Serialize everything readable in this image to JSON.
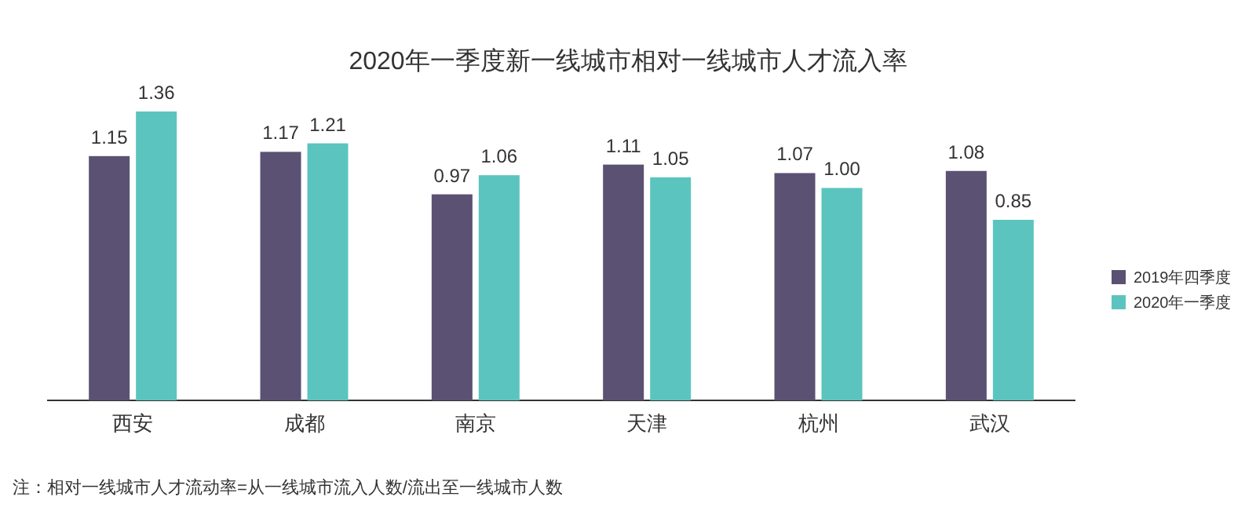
{
  "chart_data": {
    "type": "bar",
    "title": "2020年一季度新一线城市相对一线城市人才流入率",
    "categories": [
      "西安",
      "成都",
      "南京",
      "天津",
      "杭州",
      "武汉"
    ],
    "series": [
      {
        "name": "2019年四季度",
        "color": "#5b5173",
        "values": [
          1.15,
          1.17,
          0.97,
          1.11,
          1.07,
          1.08
        ],
        "value_labels": [
          "1.15",
          "1.17",
          "0.97",
          "1.11",
          "1.07",
          "1.08"
        ]
      },
      {
        "name": "2020年一季度",
        "color": "#5cc4bf",
        "values": [
          1.36,
          1.21,
          1.06,
          1.05,
          1.0,
          0.85
        ],
        "value_labels": [
          "1.36",
          "1.21",
          "1.06",
          "1.05",
          "1.00",
          "0.85"
        ]
      }
    ],
    "legend": "right",
    "annotations": [
      "注：相对一线城市人才流动率=从一线城市流入人数/流出至一线城市人数"
    ]
  }
}
